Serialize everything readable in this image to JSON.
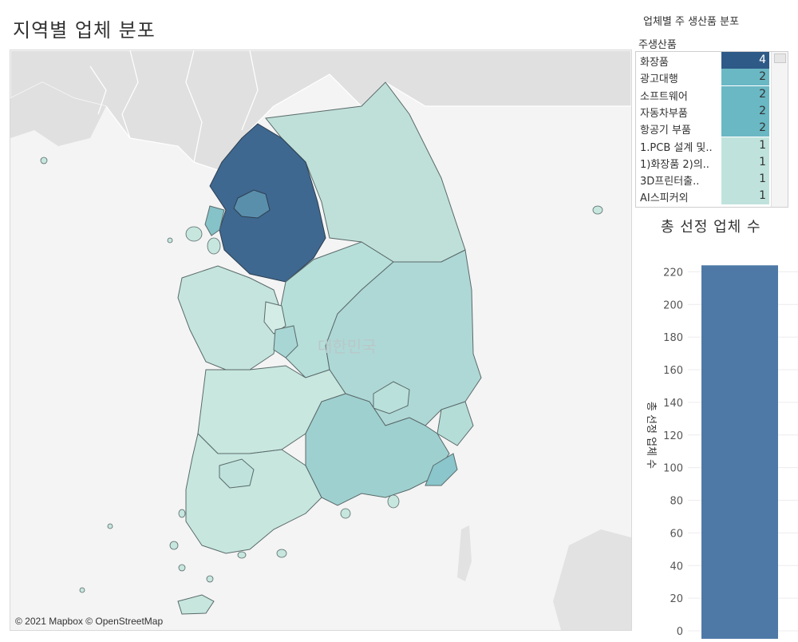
{
  "page": {
    "title": "지역별 업체 분포"
  },
  "map": {
    "country_label": "대한민국",
    "attribution": "© 2021 Mapbox © OpenStreetMap"
  },
  "product_list": {
    "panel_title": "업체별 주 생산품 분포",
    "column_header": "주생산품",
    "items": [
      {
        "label": "화장품",
        "value": "4",
        "color": "#2e5a87"
      },
      {
        "label": "광고대행",
        "value": "2",
        "color": "#6ab8c4"
      },
      {
        "label": "소프트웨어",
        "value": "2",
        "color": "#6ab8c4"
      },
      {
        "label": "자동차부품",
        "value": "2",
        "color": "#6ab8c4"
      },
      {
        "label": "항공기 부품",
        "value": "2",
        "color": "#6ab8c4"
      },
      {
        "label": "1.PCB 설계 및..",
        "value": "1",
        "color": "#bfe3dc"
      },
      {
        "label": "1)화장품 2)의..",
        "value": "1",
        "color": "#bfe3dc"
      },
      {
        "label": "3D프린터출..",
        "value": "1",
        "color": "#bfe3dc"
      },
      {
        "label": "AI스피커외",
        "value": "1",
        "color": "#bfe3dc"
      }
    ]
  },
  "chart_data": {
    "type": "bar",
    "title": "총 선정 업체 수",
    "ylabel": "총 선정 업체 수",
    "categories": [
      ""
    ],
    "values": [
      224
    ],
    "ylim": [
      0,
      230
    ],
    "yticks": [
      0,
      20,
      40,
      60,
      80,
      100,
      120,
      140,
      160,
      180,
      200,
      220
    ],
    "bar_color": "#4e79a7",
    "grid": true
  }
}
